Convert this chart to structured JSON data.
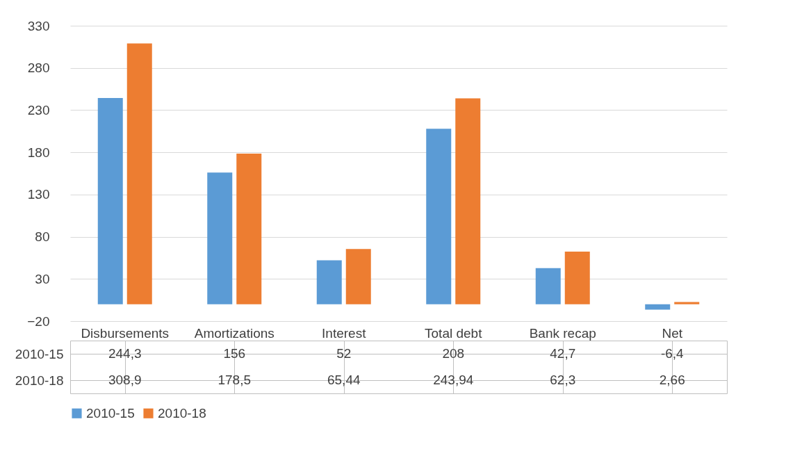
{
  "chart_data": {
    "type": "bar",
    "categories": [
      "Disbursements",
      "Amortizations",
      "Interest",
      "Total debt",
      "Bank recap",
      "Net"
    ],
    "series": [
      {
        "name": "2010-15",
        "color": "#5b9bd5",
        "values": [
          244.3,
          156,
          52,
          208,
          42.7,
          -6.4
        ],
        "value_labels": [
          "244,3",
          "156",
          "52",
          "208",
          "42,7",
          "-6,4"
        ]
      },
      {
        "name": "2010-18",
        "color": "#ed7d31",
        "values": [
          308.9,
          178.5,
          65.44,
          243.94,
          62.3,
          2.66
        ],
        "value_labels": [
          "308,9",
          "178,5",
          "65,44",
          "243,94",
          "62,3",
          "2,66"
        ]
      }
    ],
    "ylim": [
      -20,
      330
    ],
    "yticks": [
      -20,
      30,
      80,
      130,
      180,
      230,
      280,
      330
    ],
    "grid": "y",
    "legend": "bottom"
  }
}
